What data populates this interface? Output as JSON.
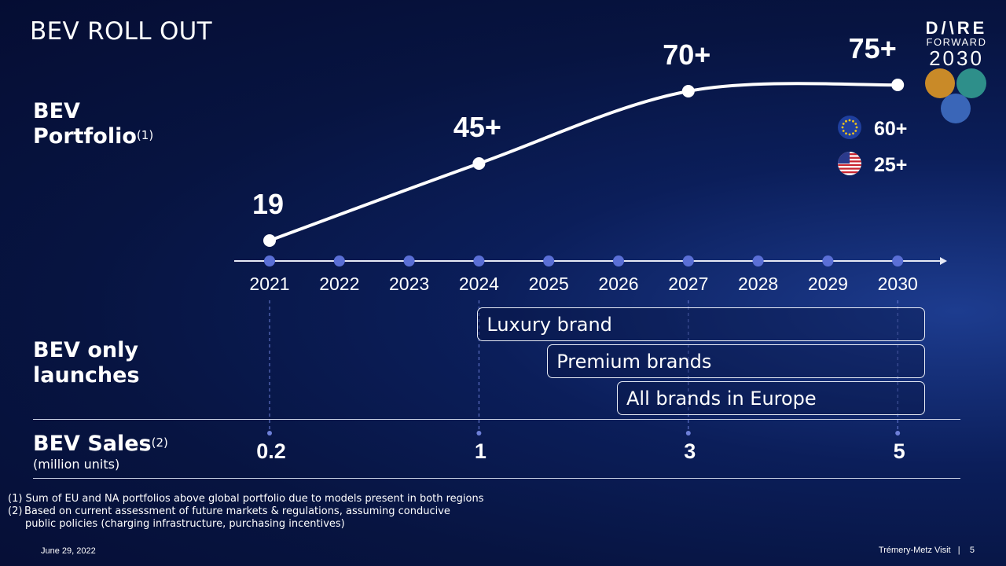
{
  "title": "BEV ROLL OUT",
  "labels": {
    "portfolio_line1": "BEV",
    "portfolio_line2": "Portfolio",
    "portfolio_sup": "(1)",
    "launches_line1": "BEV only",
    "launches_line2": "launches",
    "sales_label": "BEV Sales",
    "sales_sup": "(2)",
    "sales_units": "(million units)"
  },
  "logo": {
    "line1": "D/\\RE",
    "line2": "FORWARD",
    "line3": "2030"
  },
  "chart_data": {
    "type": "line",
    "title": "",
    "years": [
      "2021",
      "2022",
      "2023",
      "2024",
      "2025",
      "2026",
      "2027",
      "2028",
      "2029",
      "2030"
    ],
    "portfolio_points": [
      {
        "year": "2021",
        "value": 19,
        "label": "19"
      },
      {
        "year": "2024",
        "value": 45,
        "label": "45+"
      },
      {
        "year": "2027",
        "value": 70,
        "label": "70+"
      },
      {
        "year": "2030",
        "value": 75,
        "label": "75+"
      }
    ],
    "regional_breakdown": [
      {
        "region": "EU",
        "value": "60+",
        "flag": "eu-flag-icon"
      },
      {
        "region": "US",
        "value": "25+",
        "flag": "us-flag-icon"
      }
    ],
    "launches": [
      {
        "label": "Luxury brand",
        "start": "2024",
        "end": "2030"
      },
      {
        "label": "Premium brands",
        "start": "2025",
        "end": "2030"
      },
      {
        "label": "All brands in Europe",
        "start": "2026",
        "end": "2030"
      }
    ],
    "sales_million_units": [
      {
        "year": "2021",
        "value": "0.2"
      },
      {
        "year": "2024",
        "value": "1"
      },
      {
        "year": "2027",
        "value": "3"
      },
      {
        "year": "2030",
        "value": "5"
      }
    ],
    "colors": {
      "timeline_dot": "#5a6fd6",
      "line": "#ffffff",
      "background": "#071441"
    }
  },
  "footnotes": {
    "note1": "(1) Sum of EU and NA portfolios above global portfolio due to models present in both regions",
    "note2": "(2) Based on current assessment of future markets & regulations, assuming conducive",
    "note2b": "public policies (charging infrastructure, purchasing incentives)"
  },
  "footer": {
    "date": "June 29, 2022",
    "presenter": "Trémery-Metz Visit",
    "separator": "|",
    "page": "5"
  }
}
